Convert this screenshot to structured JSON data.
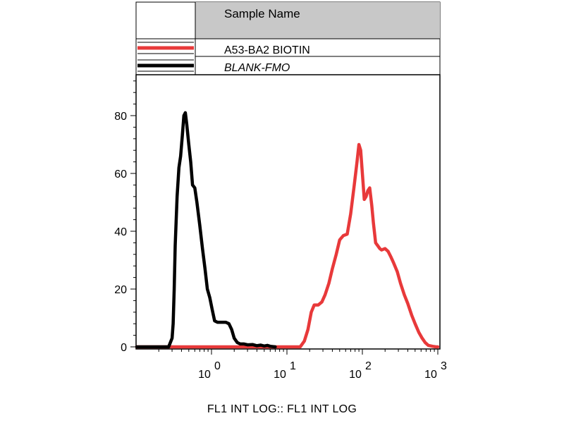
{
  "chart_data": {
    "type": "line",
    "title": "",
    "xlabel": "FL1 INT LOG:: FL1 INT LOG",
    "ylabel": "",
    "xscale": "log",
    "xlim": [
      0.1,
      1000
    ],
    "ylim": [
      0,
      92
    ],
    "grid": false,
    "legend": {
      "placement": "top",
      "header": "Sample Name",
      "entries": [
        {
          "name": "A53-BA2 BIOTIN",
          "color": "#e8393a",
          "italic": false
        },
        {
          "name": "BLANK-FMO",
          "color": "#000000",
          "italic": true
        }
      ]
    },
    "y_ticks": [
      {
        "value": 0,
        "label": "0"
      },
      {
        "value": 20,
        "label": "20"
      },
      {
        "value": 40,
        "label": "40"
      },
      {
        "value": 60,
        "label": "60"
      },
      {
        "value": 80,
        "label": "80"
      }
    ],
    "x_ticks": [
      {
        "value": 1,
        "base": "10",
        "exp": "0"
      },
      {
        "value": 10,
        "base": "10",
        "exp": "1"
      },
      {
        "value": 100,
        "base": "10",
        "exp": "2"
      },
      {
        "value": 1000,
        "base": "10",
        "exp": "3"
      }
    ],
    "series": [
      {
        "name": "BLANK-FMO",
        "color": "#000000",
        "x": [
          0.1,
          0.27,
          0.3,
          0.31,
          0.32,
          0.33,
          0.35,
          0.37,
          0.39,
          0.41,
          0.43,
          0.45,
          0.47,
          0.5,
          0.53,
          0.56,
          0.6,
          0.64,
          0.7,
          0.76,
          0.82,
          0.88,
          0.95,
          1.02,
          1.1,
          1.2,
          1.3,
          1.4,
          1.55,
          1.7,
          1.85,
          2.0,
          2.2,
          2.4,
          2.7,
          3.0,
          3.5,
          4.0,
          4.5,
          5.0,
          5.5,
          6.0,
          7.0
        ],
        "y": [
          0,
          0,
          3,
          8,
          20,
          35,
          52,
          62,
          66,
          73,
          80,
          81,
          77,
          70,
          64,
          56,
          55,
          50,
          42,
          34,
          27,
          20,
          17,
          13,
          9,
          8.5,
          8.5,
          8.5,
          8.5,
          8,
          6,
          3,
          1.5,
          1,
          1,
          0.7,
          0.8,
          0.4,
          0.6,
          0.3,
          0.5,
          0.2,
          0
        ]
      },
      {
        "name": "A53-BA2 BIOTIN",
        "color": "#e8393a",
        "x": [
          0.1,
          15,
          17,
          19,
          21,
          23,
          26,
          29,
          32,
          36,
          40,
          45,
          50,
          56,
          63,
          70,
          78,
          85,
          90,
          95,
          100,
          106,
          112,
          118,
          125,
          133,
          140,
          150,
          160,
          170,
          180,
          200,
          220,
          240,
          260,
          290,
          320,
          360,
          400,
          450,
          500,
          560,
          620,
          680,
          750,
          850,
          950,
          1000
        ],
        "y": [
          0,
          0,
          2,
          6,
          12,
          14.5,
          14.5,
          15.5,
          18,
          22,
          27,
          32,
          37,
          38.5,
          39,
          46,
          56,
          64,
          70,
          68,
          60,
          51,
          52,
          54,
          55,
          49,
          43,
          36,
          35,
          34,
          33.5,
          34,
          33,
          31,
          29,
          26,
          22,
          18,
          15,
          11,
          8,
          5,
          3,
          1.5,
          0.5,
          0.2,
          0,
          0
        ]
      }
    ]
  }
}
